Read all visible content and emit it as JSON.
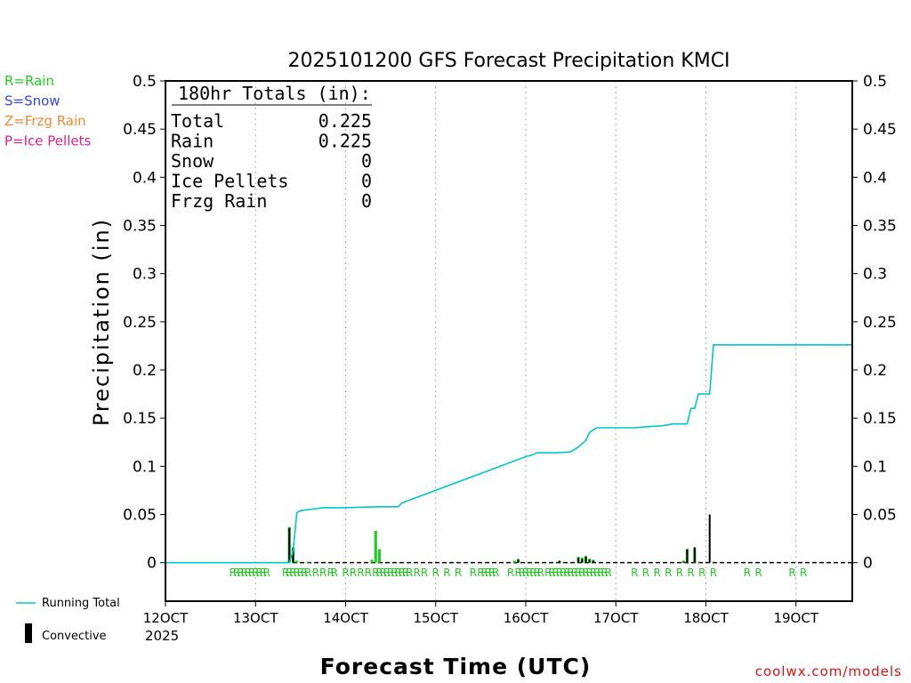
{
  "title": "2025101200 GFS Forecast Precipitation KMCI",
  "ylabel": "Precipitation (in)",
  "xlabel": "Forecast Time (UTC)",
  "watermark": "coolwx.com/models",
  "legend_types": [
    {
      "text": "R=Rain",
      "color": "#22cc22"
    },
    {
      "text": "S=Snow",
      "color": "#3344ee"
    },
    {
      "text": "Z=Frzg Rain",
      "color": "#f08a30"
    },
    {
      "text": "P=Ice Pellets",
      "color": "#e0208a"
    }
  ],
  "legend_lines": {
    "running_total": "Running Total",
    "convective": "Convective"
  },
  "totals_box": {
    "heading": "180hr Totals (in):",
    "rows": [
      {
        "label": "Total",
        "value": "0.225"
      },
      {
        "label": "Rain",
        "value": "0.225"
      },
      {
        "label": "Snow",
        "value": "0"
      },
      {
        "label": "Ice Pellets",
        "value": "0"
      },
      {
        "label": "Frzg Rain",
        "value": "0"
      }
    ]
  },
  "colors": {
    "running_total": "#00c8c8",
    "rain": "#22cc22",
    "convective": "#000000",
    "grid": "#aaaaaa"
  },
  "chart_data": {
    "type": "bar",
    "title": "2025101200 GFS Forecast Precipitation KMCI",
    "xlabel": "Forecast Time (UTC)",
    "ylabel": "Precipitation (in)",
    "x_unit": "forecast hour",
    "xlim": [
      0,
      183
    ],
    "ylim": [
      -0.04,
      0.5
    ],
    "yticks": [
      0,
      0.05,
      0.1,
      0.15,
      0.2,
      0.25,
      0.3,
      0.35,
      0.4,
      0.45,
      0.5
    ],
    "ytick_labels": [
      "0",
      "0.05",
      "0.1",
      "0.15",
      "0.2",
      "0.25",
      "0.3",
      "0.35",
      "0.4",
      "0.45",
      "0.5"
    ],
    "xticks": [
      {
        "hour": 0,
        "label": "12OCT"
      },
      {
        "hour": 24,
        "label": "13OCT"
      },
      {
        "hour": 48,
        "label": "14OCT"
      },
      {
        "hour": 72,
        "label": "15OCT"
      },
      {
        "hour": 96,
        "label": "16OCT"
      },
      {
        "hour": 120,
        "label": "17OCT"
      },
      {
        "hour": 144,
        "label": "18OCT"
      },
      {
        "hour": 168,
        "label": "19OCT"
      }
    ],
    "year_label": "2025",
    "running_total": {
      "hours": [
        0,
        33,
        34,
        35,
        36,
        38,
        40,
        42,
        44,
        45,
        47,
        57,
        58,
        60,
        62,
        63,
        96,
        98,
        99,
        101,
        102,
        103,
        104,
        108,
        110,
        112,
        113,
        114,
        115,
        116,
        117,
        118,
        125,
        128,
        132,
        134,
        135,
        136,
        138,
        139,
        140,
        141,
        142,
        144,
        145,
        146,
        183
      ],
      "values": [
        0,
        0,
        0.012,
        0.052,
        0.054,
        0.055,
        0.056,
        0.057,
        0.057,
        0.057,
        0.057,
        0.058,
        0.058,
        0.058,
        0.058,
        0.062,
        0.11,
        0.112,
        0.114,
        0.114,
        0.114,
        0.114,
        0.114,
        0.115,
        0.12,
        0.127,
        0.135,
        0.138,
        0.14,
        0.14,
        0.14,
        0.14,
        0.14,
        0.141,
        0.142,
        0.143,
        0.144,
        0.144,
        0.144,
        0.144,
        0.16,
        0.16,
        0.175,
        0.175,
        0.175,
        0.226,
        0.226
      ]
    },
    "series": [
      {
        "name": "Rain",
        "hours": [
          33,
          34,
          35,
          38,
          55,
          56,
          57,
          93,
          94,
          105,
          110,
          111,
          112,
          113,
          114,
          138,
          139,
          141,
          142
        ],
        "values": [
          0.037,
          0.016,
          0.002,
          0.001,
          0.003,
          0.033,
          0.014,
          0.002,
          0.004,
          0.002,
          0.006,
          0.005,
          0.007,
          0.004,
          0.003,
          0.002,
          0.014,
          0.015,
          0.001
        ]
      },
      {
        "name": "Convective",
        "hours": [
          33,
          34,
          94,
          105,
          110,
          111,
          112,
          113,
          114,
          138,
          139,
          141,
          145
        ],
        "values": [
          0.036,
          0.015,
          0.003,
          0.002,
          0.005,
          0.004,
          0.006,
          0.003,
          0.002,
          0.001,
          0.014,
          0.016,
          0.05
        ]
      }
    ],
    "type_markers": {
      "letter": "R",
      "hours": [
        18,
        19,
        20,
        21,
        22,
        23,
        24,
        25,
        26,
        27,
        32,
        33,
        34,
        35,
        36,
        37,
        38,
        40,
        42,
        44,
        45,
        48,
        50,
        52,
        54,
        56,
        57,
        58,
        59,
        60,
        61,
        62,
        63,
        64,
        65,
        67,
        69,
        72,
        75,
        78,
        82,
        84,
        85,
        86,
        87,
        88,
        92,
        94,
        95,
        96,
        97,
        98,
        99,
        100,
        102,
        103,
        104,
        105,
        106,
        107,
        108,
        109,
        110,
        111,
        112,
        113,
        114,
        115,
        116,
        117,
        118,
        125,
        128,
        131,
        134,
        137,
        140,
        143,
        146,
        155,
        158,
        167,
        170
      ]
    }
  }
}
